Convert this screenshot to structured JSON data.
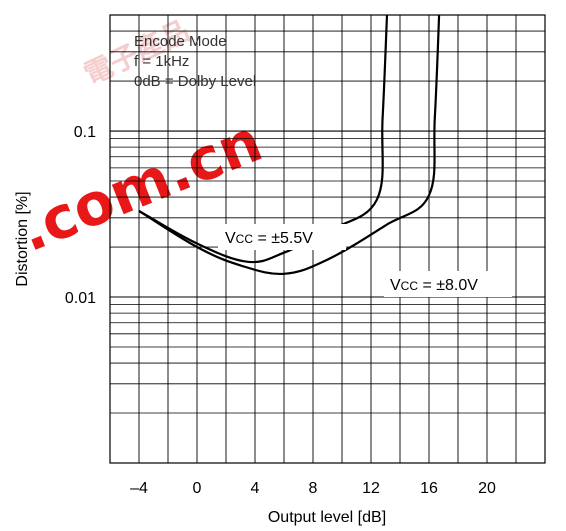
{
  "chart_data": {
    "type": "line",
    "xlabel": "Output level [dB]",
    "ylabel": "Distortion [%]",
    "xlim": [
      -6,
      24
    ],
    "ylim": [
      0.001,
      0.5
    ],
    "y_scale": "log",
    "x_ticks": [
      -4,
      0,
      4,
      8,
      12,
      16,
      20
    ],
    "x_tick_labels": [
      "–4",
      "0",
      "4",
      "8",
      "12",
      "16",
      "20"
    ],
    "y_ticks": [
      0.01,
      0.1
    ],
    "y_tick_labels": [
      "0.01",
      "0.1"
    ],
    "grid": true,
    "annotation": [
      "Encode Mode",
      "f = 1kHz",
      "0dB = Dolby Level"
    ],
    "series": [
      {
        "name": "Vcc = ±5.5V",
        "label_main": "V",
        "label_sub": "CC",
        "label_rest": " = ±5.5V",
        "points": [
          [
            -4,
            0.033
          ],
          [
            0,
            0.021
          ],
          [
            3.5,
            0.0163
          ],
          [
            6,
            0.0185
          ],
          [
            9,
            0.025
          ],
          [
            12.4,
            0.0385
          ],
          [
            12.8,
            0.12
          ],
          [
            13.1,
            0.5
          ]
        ]
      },
      {
        "name": "Vcc = ±8.0V",
        "label_main": "V",
        "label_sub": "CC",
        "label_rest": " = ±8.0V",
        "points": [
          [
            -4,
            0.033
          ],
          [
            0,
            0.02
          ],
          [
            3,
            0.0155
          ],
          [
            6,
            0.0138
          ],
          [
            9,
            0.0168
          ],
          [
            13,
            0.027
          ],
          [
            16,
            0.041
          ],
          [
            16.4,
            0.12
          ],
          [
            16.7,
            0.5
          ]
        ]
      }
    ],
    "watermark": {
      "text": ".com.cn",
      "color": "#e60000"
    }
  }
}
